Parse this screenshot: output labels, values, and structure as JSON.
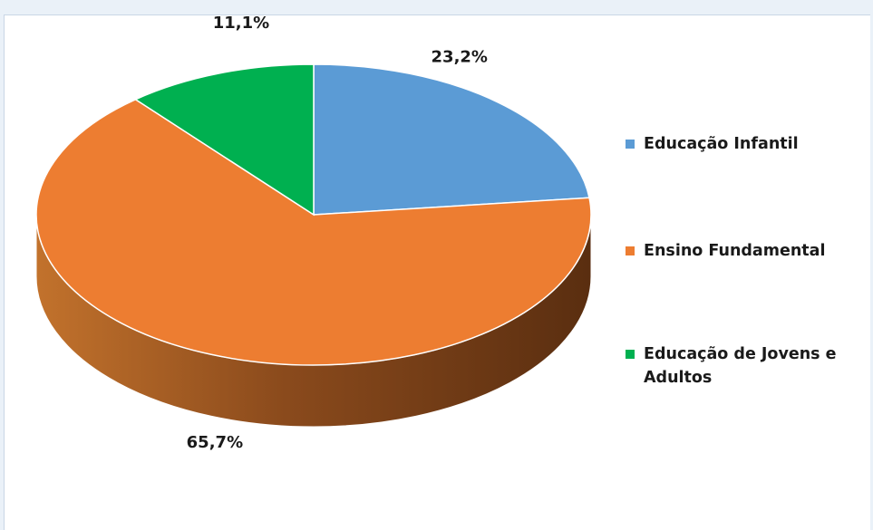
{
  "chart_data": {
    "type": "pie",
    "style": "3d-tilted",
    "title": "",
    "slices": [
      {
        "label": "Educação Infantil",
        "value": 23.2,
        "value_label": "23,2%",
        "color": "#5b9bd5"
      },
      {
        "label": "Ensino Fundamental",
        "value": 65.7,
        "value_label": "65,7%",
        "color": "#ed7d31"
      },
      {
        "label": "Educação de Jovens e Adultos",
        "value": 11.1,
        "value_label": "11,1%",
        "color": "#00b050"
      }
    ],
    "legend_position": "right"
  },
  "legend": {
    "items": [
      {
        "label": "Educação Infantil",
        "color": "#5b9bd5"
      },
      {
        "label": "Ensino Fundamental",
        "color": "#ed7d31"
      },
      {
        "label": "Educação de Jovens e Adultos",
        "color": "#00b050"
      }
    ]
  }
}
